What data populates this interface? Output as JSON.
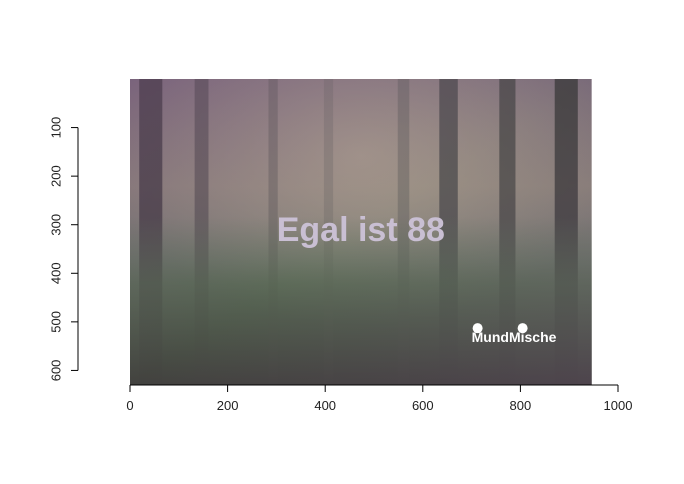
{
  "chart_data": {
    "type": "image",
    "title": "",
    "xlabel": "",
    "ylabel": "",
    "xlim": [
      0,
      1000
    ],
    "ylim": [
      630,
      0
    ],
    "x_ticks": [
      0,
      200,
      400,
      600,
      800,
      1000
    ],
    "y_ticks": [
      100,
      200,
      300,
      400,
      500,
      600
    ],
    "image_extent": {
      "x": [
        0,
        946
      ],
      "y": [
        0,
        630
      ]
    },
    "image_subject": "misty redwood forest with ferns",
    "grid": false,
    "legend": "none"
  },
  "image_text": {
    "headline": "Egal ist 88",
    "logo_part1": "und",
    "logo_part2": "ische",
    "logo_letter1": "M",
    "logo_letter2": "M"
  },
  "colors": {
    "headline": "#c9bfd3",
    "logo": "#ffffff",
    "axis": "#000000"
  }
}
